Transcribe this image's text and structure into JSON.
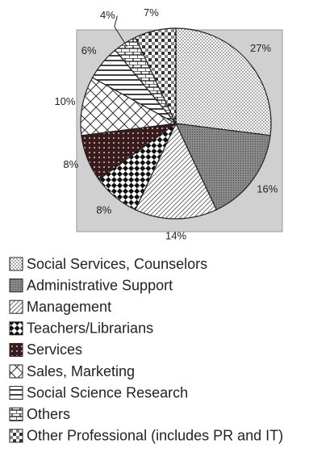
{
  "chart_data": {
    "type": "pie",
    "categories": [
      "Social Services, Counselors",
      "Administrative Support",
      "Management",
      "Teachers/Librarians",
      "Services",
      "Sales, Marketing",
      "Social Science Research",
      "Others",
      "Other Professional (includes PR and IT)"
    ],
    "values": [
      27,
      16,
      14,
      8,
      8,
      10,
      6,
      4,
      7
    ],
    "value_labels": [
      "27%",
      "16%",
      "14%",
      "8%",
      "8%",
      "10%",
      "6%",
      "4%",
      "7%"
    ],
    "start_angle": "top",
    "direction": "clockwise"
  }
}
